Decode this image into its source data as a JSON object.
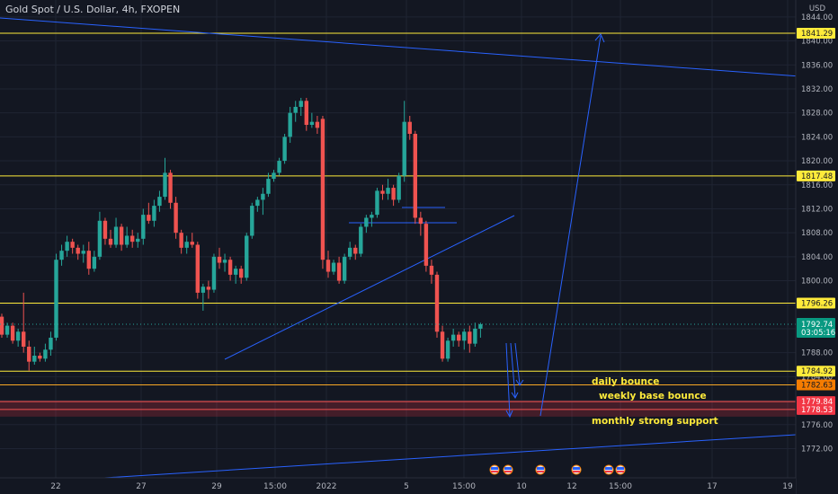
{
  "header": {
    "title": "Gold Spot / U.S. Dollar, 4h, FXOPEN"
  },
  "axis": {
    "currency": "USD",
    "y_ticks": [
      1772.0,
      1776.0,
      1780.0,
      1784.0,
      1788.0,
      1792.0,
      1796.0,
      1800.0,
      1804.0,
      1808.0,
      1812.0,
      1816.0,
      1820.0,
      1824.0,
      1828.0,
      1832.0,
      1836.0,
      1840.0,
      1844.0
    ],
    "x_ticks": [
      "22",
      "27",
      "29",
      "15:00",
      "2022",
      "5",
      "15:00",
      "10",
      "12",
      "15:00",
      "17",
      "19"
    ]
  },
  "price_tag": {
    "price": "1792.74",
    "countdown": "03:05:16"
  },
  "levels": [
    {
      "price": 1841.29,
      "label": "1841.29",
      "color": "#ffeb3b",
      "label_bg": "#ffeb3b",
      "label_color": "#131722"
    },
    {
      "price": 1817.48,
      "label": "1817.48",
      "color": "#ffeb3b",
      "label_bg": "#ffeb3b",
      "label_color": "#131722"
    },
    {
      "price": 1796.26,
      "label": "1796.26",
      "color": "#ffeb3b",
      "label_bg": "#ffeb3b",
      "label_color": "#131722"
    },
    {
      "price": 1784.92,
      "label": "1784.92",
      "color": "#ffeb3b",
      "label_bg": "#ffeb3b",
      "label_color": "#131722"
    },
    {
      "price": 1782.63,
      "label": "1782.63",
      "color": "#f9a825",
      "label_bg": "#f57c00",
      "label_color": "#131722"
    },
    {
      "price": 1779.84,
      "label": "1779.84",
      "color": "#ef5350",
      "label_bg": "#f23645",
      "label_color": "#ffffff"
    },
    {
      "price": 1778.53,
      "label": "1778.53",
      "color": "#ef5350",
      "label_bg": "#f23645",
      "label_color": "#ffffff"
    }
  ],
  "annotations": [
    "daily bounce",
    "weekly base bounce",
    "monthly strong support"
  ],
  "colors": {
    "up": "#26a69a",
    "down": "#ef5350",
    "trendline": "#2962ff",
    "level": "#ffeb3b",
    "background": "#131722"
  },
  "chart_data": {
    "type": "candlestick",
    "title": "Gold Spot / U.S. Dollar, 4h, FXOPEN",
    "ylabel": "USD",
    "ylim": [
      1770,
      1846
    ],
    "x_tick_labels": [
      "22",
      "27",
      "29",
      "15:00",
      "2022",
      "5",
      "15:00",
      "10",
      "12",
      "15:00",
      "17",
      "19"
    ],
    "series": [
      {
        "values": [
          [
            1794,
            1794.5,
            1790.5,
            1791
          ],
          [
            1791,
            1793,
            1790.5,
            1792.5
          ],
          [
            1792.5,
            1793,
            1789.5,
            1790
          ],
          [
            1790,
            1792,
            1789,
            1791.5
          ],
          [
            1791.5,
            1798,
            1788,
            1789
          ],
          [
            1789,
            1790,
            1785,
            1786.5
          ],
          [
            1786.5,
            1789,
            1786,
            1787.5
          ],
          [
            1787.5,
            1788,
            1786.5,
            1787
          ],
          [
            1787,
            1789.5,
            1786.5,
            1788.5
          ],
          [
            1788.5,
            1791.5,
            1787.5,
            1790.5
          ],
          [
            1790.5,
            1804.5,
            1790,
            1803.5
          ],
          [
            1803.5,
            1806,
            1802.5,
            1805
          ],
          [
            1805,
            1807.5,
            1804,
            1806.5
          ],
          [
            1806.5,
            1807,
            1804.5,
            1805.5
          ],
          [
            1805.5,
            1806,
            1803.5,
            1804.5
          ],
          [
            1804.5,
            1806,
            1803,
            1805
          ],
          [
            1805,
            1806.5,
            1801,
            1802
          ],
          [
            1802,
            1805,
            1801.5,
            1804
          ],
          [
            1804,
            1811.5,
            1803.5,
            1810
          ],
          [
            1810,
            1810.5,
            1806,
            1807
          ],
          [
            1807,
            1808.5,
            1805.5,
            1806
          ],
          [
            1806,
            1810.5,
            1805.5,
            1809
          ],
          [
            1809,
            1809.5,
            1805,
            1806
          ],
          [
            1806,
            1809,
            1805.5,
            1807.5
          ],
          [
            1807.5,
            1808.5,
            1805.5,
            1806.5
          ],
          [
            1806.5,
            1808,
            1805.5,
            1807
          ],
          [
            1807,
            1812,
            1806,
            1811
          ],
          [
            1811,
            1813,
            1809.5,
            1810
          ],
          [
            1810,
            1813.5,
            1809,
            1812.5
          ],
          [
            1812.5,
            1815,
            1811.5,
            1814
          ],
          [
            1814,
            1820.5,
            1813.5,
            1818
          ],
          [
            1818,
            1818.5,
            1812,
            1813
          ],
          [
            1813,
            1814,
            1807,
            1808
          ],
          [
            1808,
            1808.5,
            1804.5,
            1805.5
          ],
          [
            1805.5,
            1807.5,
            1804.5,
            1806.5
          ],
          [
            1806.5,
            1808,
            1805.5,
            1806
          ],
          [
            1806,
            1806.5,
            1797,
            1798
          ],
          [
            1798,
            1799.5,
            1795,
            1799
          ],
          [
            1799,
            1800,
            1797,
            1798.5
          ],
          [
            1798.5,
            1804.5,
            1798,
            1804
          ],
          [
            1804,
            1805.5,
            1802,
            1803
          ],
          [
            1803,
            1804.5,
            1801.5,
            1803.5
          ],
          [
            1803.5,
            1804,
            1800,
            1801
          ],
          [
            1801,
            1802.5,
            1799.5,
            1802
          ],
          [
            1802,
            1802.5,
            1799.5,
            1800.5
          ],
          [
            1800.5,
            1808,
            1800,
            1807.5
          ],
          [
            1807.5,
            1813,
            1807,
            1812.5
          ],
          [
            1812.5,
            1814,
            1811.5,
            1813.5
          ],
          [
            1813.5,
            1815.5,
            1811,
            1814.5
          ],
          [
            1814.5,
            1818,
            1814,
            1817
          ],
          [
            1817,
            1818.5,
            1816.5,
            1818
          ],
          [
            1818,
            1820.5,
            1817.5,
            1820
          ],
          [
            1820,
            1824.5,
            1819.5,
            1824
          ],
          [
            1824,
            1829,
            1823,
            1828
          ],
          [
            1828,
            1830,
            1826.5,
            1829
          ],
          [
            1829,
            1830.5,
            1827.5,
            1830
          ],
          [
            1830,
            1830.5,
            1825,
            1826
          ],
          [
            1826,
            1828,
            1825.5,
            1826.5
          ],
          [
            1826.5,
            1827.5,
            1824.5,
            1825.5
          ],
          [
            1827,
            1827.5,
            1802,
            1803.5
          ],
          [
            1803.5,
            1805,
            1800.5,
            1801.5
          ],
          [
            1801.5,
            1803.5,
            1801,
            1803
          ],
          [
            1803,
            1804,
            1799.5,
            1800
          ],
          [
            1800,
            1804.5,
            1799.5,
            1804
          ],
          [
            1804,
            1806.5,
            1803.5,
            1805.5
          ],
          [
            1805.5,
            1806,
            1803.5,
            1804.5
          ],
          [
            1804.5,
            1809.5,
            1804,
            1809
          ],
          [
            1809,
            1811,
            1808,
            1810.5
          ],
          [
            1810.5,
            1811.5,
            1809,
            1811
          ],
          [
            1811,
            1815.5,
            1810.5,
            1815
          ],
          [
            1815,
            1816,
            1813.5,
            1814.5
          ],
          [
            1814.5,
            1817,
            1813.5,
            1815.5
          ],
          [
            1815.5,
            1816,
            1812.5,
            1813.5
          ],
          [
            1813.5,
            1818,
            1813,
            1817.5
          ],
          [
            1817.5,
            1830,
            1816.5,
            1826.5
          ],
          [
            1826.5,
            1827.5,
            1823.5,
            1824.5
          ],
          [
            1824.5,
            1825,
            1809.5,
            1810.5
          ],
          [
            1810.5,
            1811.5,
            1807.5,
            1809.5
          ],
          [
            1809.5,
            1810,
            1801.5,
            1802.5
          ],
          [
            1802.5,
            1803.5,
            1799.5,
            1801
          ],
          [
            1801,
            1801.5,
            1790.5,
            1791.5
          ],
          [
            1791.5,
            1792.5,
            1786.5,
            1787
          ],
          [
            1787,
            1790.5,
            1786.5,
            1790
          ],
          [
            1790,
            1792,
            1789,
            1791
          ],
          [
            1791,
            1791.5,
            1789,
            1790
          ],
          [
            1790,
            1792,
            1788.5,
            1791.5
          ],
          [
            1791.5,
            1792.5,
            1788,
            1789.5
          ],
          [
            1789.5,
            1793,
            1789,
            1792
          ],
          [
            1792,
            1793,
            1790.5,
            1792.74
          ]
        ]
      }
    ]
  }
}
